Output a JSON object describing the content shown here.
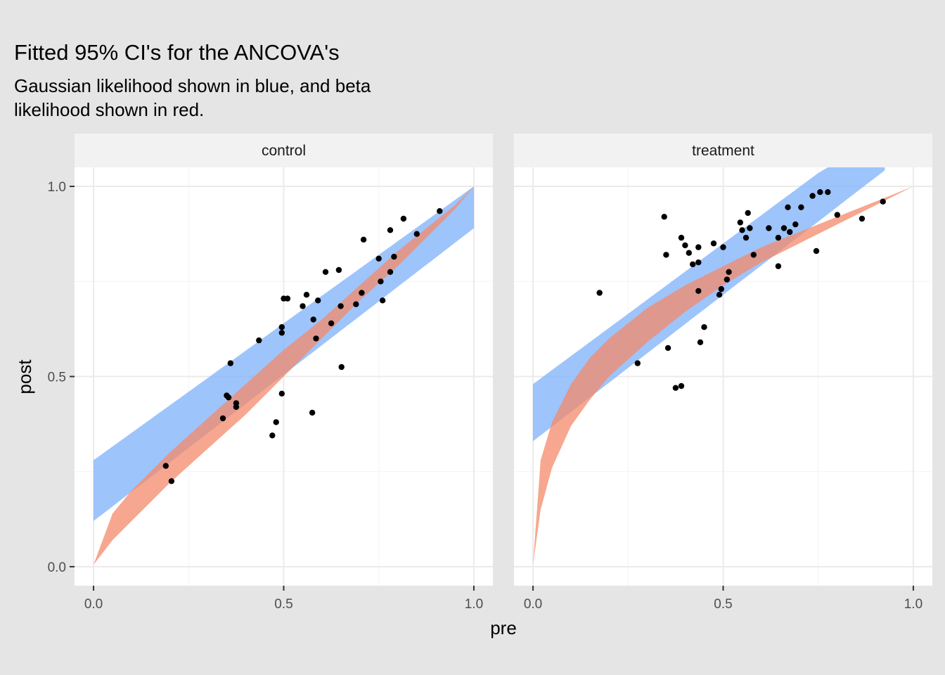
{
  "title": "Fitted 95% CI's for the ANCOVA's",
  "subtitle_lines": [
    "Gaussian likelihood shown in blue, and beta",
    "likelihood shown in red."
  ],
  "colors": {
    "background": "#e5e5e5",
    "panel": "#ffffff",
    "strip": "#f2f2f2",
    "grid": "#ebebeb",
    "gaussian_band": "#7eb0fb",
    "beta_band": "#f4896a",
    "points": "#000000"
  },
  "chart_data": {
    "type": "scatter",
    "xlabel": "pre",
    "ylabel": "post",
    "xlim": [
      -0.05,
      1.05
    ],
    "ylim": [
      -0.05,
      1.05
    ],
    "x_ticks": [
      0.0,
      0.5,
      1.0
    ],
    "y_ticks": [
      0.0,
      0.5,
      1.0
    ],
    "x_tick_labels": [
      "0.0",
      "0.5",
      "1.0"
    ],
    "y_tick_labels": [
      "0.0",
      "0.5",
      "1.0"
    ],
    "grid": true,
    "facets": [
      {
        "label": "control",
        "gaussian_ci": {
          "x": [
            0.0,
            1.0
          ],
          "lower": [
            0.12,
            0.89
          ],
          "upper": [
            0.28,
            1.0
          ]
        },
        "beta_ci": {
          "x": [
            0.0,
            0.05,
            0.1,
            0.15,
            0.2,
            0.3,
            0.4,
            0.5,
            0.6,
            0.7,
            0.8,
            0.9,
            0.95,
            1.0
          ],
          "lower": [
            0.005,
            0.07,
            0.12,
            0.17,
            0.22,
            0.31,
            0.4,
            0.5,
            0.6,
            0.7,
            0.79,
            0.89,
            0.94,
            1.0
          ],
          "upper": [
            0.005,
            0.14,
            0.2,
            0.25,
            0.3,
            0.39,
            0.48,
            0.57,
            0.65,
            0.74,
            0.83,
            0.91,
            0.95,
            1.0
          ]
        },
        "points": [
          [
            0.19,
            0.265
          ],
          [
            0.205,
            0.225
          ],
          [
            0.34,
            0.39
          ],
          [
            0.35,
            0.45
          ],
          [
            0.355,
            0.445
          ],
          [
            0.36,
            0.535
          ],
          [
            0.375,
            0.43
          ],
          [
            0.375,
            0.42
          ],
          [
            0.435,
            0.595
          ],
          [
            0.47,
            0.345
          ],
          [
            0.48,
            0.38
          ],
          [
            0.495,
            0.63
          ],
          [
            0.495,
            0.615
          ],
          [
            0.495,
            0.455
          ],
          [
            0.5,
            0.705
          ],
          [
            0.51,
            0.705
          ],
          [
            0.55,
            0.685
          ],
          [
            0.56,
            0.715
          ],
          [
            0.575,
            0.405
          ],
          [
            0.578,
            0.65
          ],
          [
            0.585,
            0.6
          ],
          [
            0.59,
            0.7
          ],
          [
            0.61,
            0.775
          ],
          [
            0.625,
            0.64
          ],
          [
            0.645,
            0.78
          ],
          [
            0.65,
            0.685
          ],
          [
            0.652,
            0.525
          ],
          [
            0.69,
            0.69
          ],
          [
            0.705,
            0.72
          ],
          [
            0.71,
            0.86
          ],
          [
            0.75,
            0.81
          ],
          [
            0.755,
            0.75
          ],
          [
            0.76,
            0.7
          ],
          [
            0.78,
            0.775
          ],
          [
            0.78,
            0.885
          ],
          [
            0.79,
            0.815
          ],
          [
            0.815,
            0.915
          ],
          [
            0.85,
            0.875
          ],
          [
            0.91,
            0.935
          ]
        ]
      },
      {
        "label": "treatment",
        "gaussian_ci": {
          "x": [
            0.0,
            1.0
          ],
          "lower": [
            0.33,
            1.1
          ],
          "upper": [
            0.48,
            1.22
          ]
        },
        "beta_ci": {
          "x": [
            0.0,
            0.02,
            0.05,
            0.1,
            0.15,
            0.2,
            0.3,
            0.4,
            0.5,
            0.6,
            0.7,
            0.8,
            0.9,
            1.0
          ],
          "lower": [
            0.005,
            0.15,
            0.26,
            0.37,
            0.44,
            0.5,
            0.59,
            0.67,
            0.74,
            0.8,
            0.85,
            0.9,
            0.95,
            1.0
          ],
          "upper": [
            0.005,
            0.28,
            0.38,
            0.48,
            0.55,
            0.6,
            0.68,
            0.74,
            0.79,
            0.84,
            0.88,
            0.92,
            0.96,
            1.0
          ]
        },
        "points": [
          [
            0.175,
            0.72
          ],
          [
            0.275,
            0.535
          ],
          [
            0.345,
            0.92
          ],
          [
            0.35,
            0.82
          ],
          [
            0.355,
            0.575
          ],
          [
            0.375,
            0.47
          ],
          [
            0.39,
            0.475
          ],
          [
            0.39,
            0.865
          ],
          [
            0.4,
            0.845
          ],
          [
            0.41,
            0.825
          ],
          [
            0.42,
            0.795
          ],
          [
            0.435,
            0.84
          ],
          [
            0.435,
            0.8
          ],
          [
            0.435,
            0.725
          ],
          [
            0.44,
            0.59
          ],
          [
            0.45,
            0.63
          ],
          [
            0.475,
            0.85
          ],
          [
            0.49,
            0.715
          ],
          [
            0.495,
            0.73
          ],
          [
            0.5,
            0.84
          ],
          [
            0.51,
            0.755
          ],
          [
            0.515,
            0.775
          ],
          [
            0.545,
            0.905
          ],
          [
            0.55,
            0.885
          ],
          [
            0.56,
            0.865
          ],
          [
            0.565,
            0.93
          ],
          [
            0.57,
            0.89
          ],
          [
            0.58,
            0.82
          ],
          [
            0.62,
            0.89
          ],
          [
            0.645,
            0.79
          ],
          [
            0.645,
            0.865
          ],
          [
            0.66,
            0.89
          ],
          [
            0.67,
            0.945
          ],
          [
            0.675,
            0.88
          ],
          [
            0.69,
            0.9
          ],
          [
            0.705,
            0.945
          ],
          [
            0.735,
            0.975
          ],
          [
            0.745,
            0.83
          ],
          [
            0.755,
            0.985
          ],
          [
            0.775,
            0.985
          ],
          [
            0.8,
            0.925
          ],
          [
            0.865,
            0.915
          ],
          [
            0.92,
            0.96
          ]
        ]
      }
    ]
  }
}
